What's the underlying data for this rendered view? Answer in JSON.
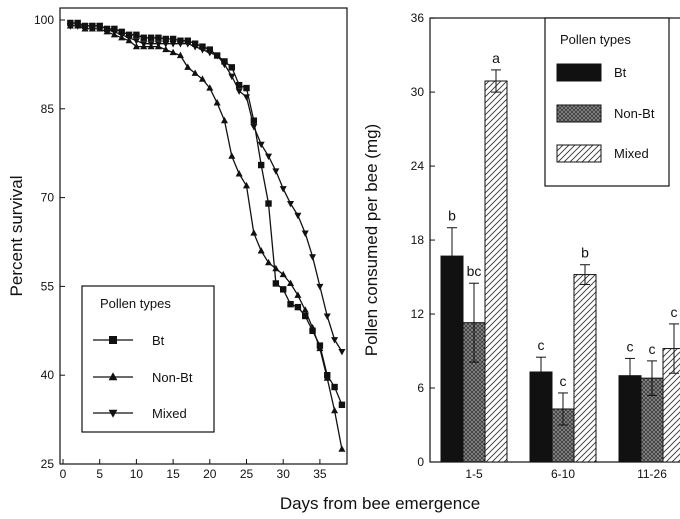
{
  "xlabel_shared": "Days from bee emergence",
  "chart_data": [
    {
      "type": "line",
      "ylabel": "Percent survival",
      "xlim": [
        0,
        39
      ],
      "ylim": [
        25,
        101
      ],
      "xticks": [
        "0",
        "5",
        "10",
        "15",
        "20",
        "25",
        "30",
        "35"
      ],
      "yticks": [
        "25",
        "40",
        "55",
        "70",
        "85",
        "100"
      ],
      "legend": {
        "title": "Pollen types",
        "position": "bottom-left"
      },
      "series": [
        {
          "name": "Bt",
          "marker": "square",
          "points": [
            [
              1,
              99.5
            ],
            [
              2,
              99.5
            ],
            [
              3,
              99
            ],
            [
              4,
              99
            ],
            [
              5,
              99
            ],
            [
              6,
              98.5
            ],
            [
              7,
              98.5
            ],
            [
              8,
              98
            ],
            [
              9,
              97.5
            ],
            [
              10,
              97.5
            ],
            [
              11,
              97
            ],
            [
              12,
              97
            ],
            [
              13,
              97
            ],
            [
              14,
              96.8
            ],
            [
              15,
              96.8
            ],
            [
              16,
              96.5
            ],
            [
              17,
              96.5
            ],
            [
              18,
              96
            ],
            [
              19,
              95.5
            ],
            [
              20,
              95
            ],
            [
              21,
              94
            ],
            [
              22,
              93
            ],
            [
              23,
              92
            ],
            [
              24,
              89
            ],
            [
              25,
              88.5
            ],
            [
              26,
              83
            ],
            [
              27,
              75.5
            ],
            [
              28,
              69
            ],
            [
              29,
              55.5
            ],
            [
              30,
              54.5
            ],
            [
              31,
              52
            ],
            [
              32,
              51.5
            ],
            [
              33,
              50
            ],
            [
              34,
              47.5
            ],
            [
              35,
              45
            ],
            [
              36,
              40
            ],
            [
              37,
              38
            ],
            [
              38,
              35
            ]
          ]
        },
        {
          "name": "Non-Bt",
          "marker": "triangle-up",
          "points": [
            [
              1,
              99
            ],
            [
              2,
              99
            ],
            [
              3,
              98.5
            ],
            [
              4,
              98.5
            ],
            [
              5,
              98.5
            ],
            [
              6,
              98
            ],
            [
              7,
              97.5
            ],
            [
              8,
              97
            ],
            [
              9,
              96.5
            ],
            [
              10,
              95.5
            ],
            [
              11,
              95.5
            ],
            [
              12,
              95.5
            ],
            [
              13,
              95.5
            ],
            [
              14,
              95
            ],
            [
              15,
              94.5
            ],
            [
              16,
              94
            ],
            [
              17,
              92
            ],
            [
              18,
              91
            ],
            [
              19,
              90
            ],
            [
              20,
              88.5
            ],
            [
              21,
              86
            ],
            [
              22,
              83
            ],
            [
              23,
              77
            ],
            [
              24,
              74
            ],
            [
              25,
              72
            ],
            [
              26,
              64
            ],
            [
              27,
              61
            ],
            [
              28,
              59
            ],
            [
              29,
              58
            ],
            [
              30,
              57
            ],
            [
              31,
              55.5
            ],
            [
              32,
              53.5
            ],
            [
              33,
              51
            ],
            [
              34,
              48
            ],
            [
              35,
              44.5
            ],
            [
              36,
              39.5
            ],
            [
              37,
              34
            ],
            [
              38,
              27.5
            ]
          ]
        },
        {
          "name": "Mixed",
          "marker": "triangle-down",
          "points": [
            [
              1,
              99
            ],
            [
              2,
              99
            ],
            [
              3,
              99
            ],
            [
              4,
              99
            ],
            [
              5,
              99
            ],
            [
              6,
              98.5
            ],
            [
              7,
              98
            ],
            [
              8,
              97.5
            ],
            [
              9,
              97
            ],
            [
              10,
              96.5
            ],
            [
              11,
              96
            ],
            [
              12,
              96
            ],
            [
              13,
              96
            ],
            [
              14,
              96
            ],
            [
              15,
              96
            ],
            [
              16,
              96
            ],
            [
              17,
              96
            ],
            [
              18,
              95.5
            ],
            [
              19,
              95
            ],
            [
              20,
              94.5
            ],
            [
              21,
              94
            ],
            [
              22,
              92.5
            ],
            [
              23,
              90.5
            ],
            [
              24,
              88
            ],
            [
              25,
              87
            ],
            [
              26,
              82
            ],
            [
              27,
              79
            ],
            [
              28,
              77
            ],
            [
              29,
              74.5
            ],
            [
              30,
              71.5
            ],
            [
              31,
              69
            ],
            [
              32,
              67
            ],
            [
              33,
              64
            ],
            [
              34,
              60
            ],
            [
              35,
              55
            ],
            [
              36,
              50
            ],
            [
              37,
              46
            ],
            [
              38,
              44
            ]
          ]
        }
      ]
    },
    {
      "type": "bar",
      "ylabel": "Pollen consumed per bee (mg)",
      "ylim": [
        0,
        36
      ],
      "yticks": [
        "0",
        "6",
        "12",
        "18",
        "24",
        "30",
        "36"
      ],
      "categories": [
        "1-5",
        "6-10",
        "11-26"
      ],
      "legend": {
        "title": "Pollen types",
        "position": "top-right"
      },
      "series": [
        {
          "name": "Bt",
          "pattern": "solid-black",
          "values": [
            16.7,
            7.3,
            7.0
          ],
          "errors": [
            2.3,
            1.2,
            1.4
          ],
          "letters": [
            "b",
            "c",
            "c"
          ]
        },
        {
          "name": "Non-Bt",
          "pattern": "crosshatch-gray",
          "values": [
            11.3,
            4.3,
            6.8
          ],
          "errors": [
            3.2,
            1.3,
            1.4
          ],
          "letters": [
            "bc",
            "c",
            "c"
          ]
        },
        {
          "name": "Mixed",
          "pattern": "diagonal-hatch",
          "values": [
            30.9,
            15.2,
            9.2
          ],
          "errors": [
            0.9,
            0.8,
            2.0
          ],
          "letters": [
            "a",
            "b",
            "c"
          ]
        }
      ]
    }
  ]
}
